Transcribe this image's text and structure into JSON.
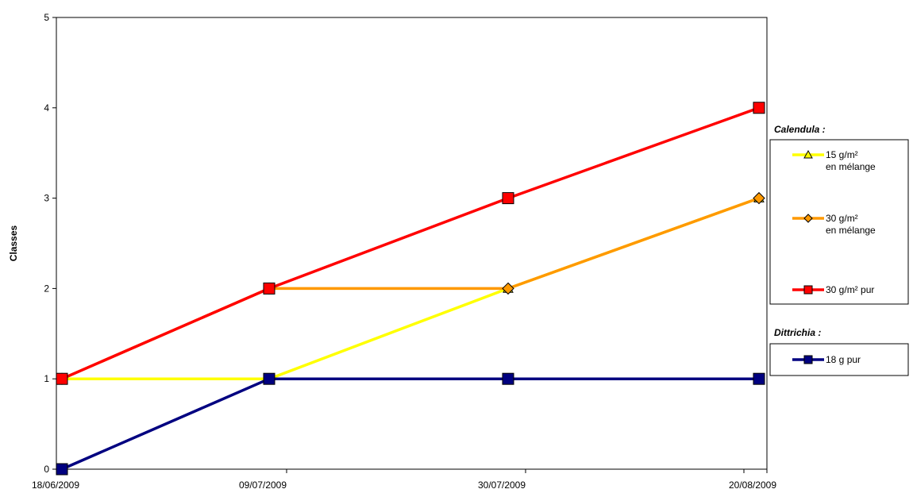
{
  "chart_data": {
    "type": "line",
    "title": "",
    "xlabel": "",
    "ylabel": "Classes",
    "ylim": [
      0,
      5
    ],
    "yticks": [
      0,
      1,
      2,
      3,
      4,
      5
    ],
    "x": [
      "18/06/2009",
      "09/07/2009",
      "30/07/2009",
      "20/08/2009"
    ],
    "grid": false,
    "legend_position": "right",
    "legend_groups": [
      {
        "title": "Calendula :",
        "series": [
          0,
          1,
          2
        ]
      },
      {
        "title": "Dittrichia :",
        "series": [
          3
        ]
      }
    ],
    "series": [
      {
        "name": "15 g/m² en mélange",
        "label_lines": [
          "15 g/m²",
          "en mélange"
        ],
        "values": [
          1,
          1,
          2,
          3
        ],
        "color": "#ffff00",
        "marker": "triangle"
      },
      {
        "name": "30 g/m² en mélange",
        "label_lines": [
          "30 g/m²",
          "en mélange"
        ],
        "values": [
          1,
          2,
          2,
          3
        ],
        "color": "#ff9900",
        "marker": "diamond"
      },
      {
        "name": "30 g/m² pur",
        "label_lines": [
          "30 g/m² pur"
        ],
        "values": [
          1,
          2,
          3,
          4
        ],
        "color": "#ff0000",
        "marker": "square"
      },
      {
        "name": "18 g pur",
        "label_lines": [
          "18 g pur"
        ],
        "values": [
          0,
          1,
          1,
          1
        ],
        "color": "#000080",
        "marker": "square"
      }
    ]
  }
}
